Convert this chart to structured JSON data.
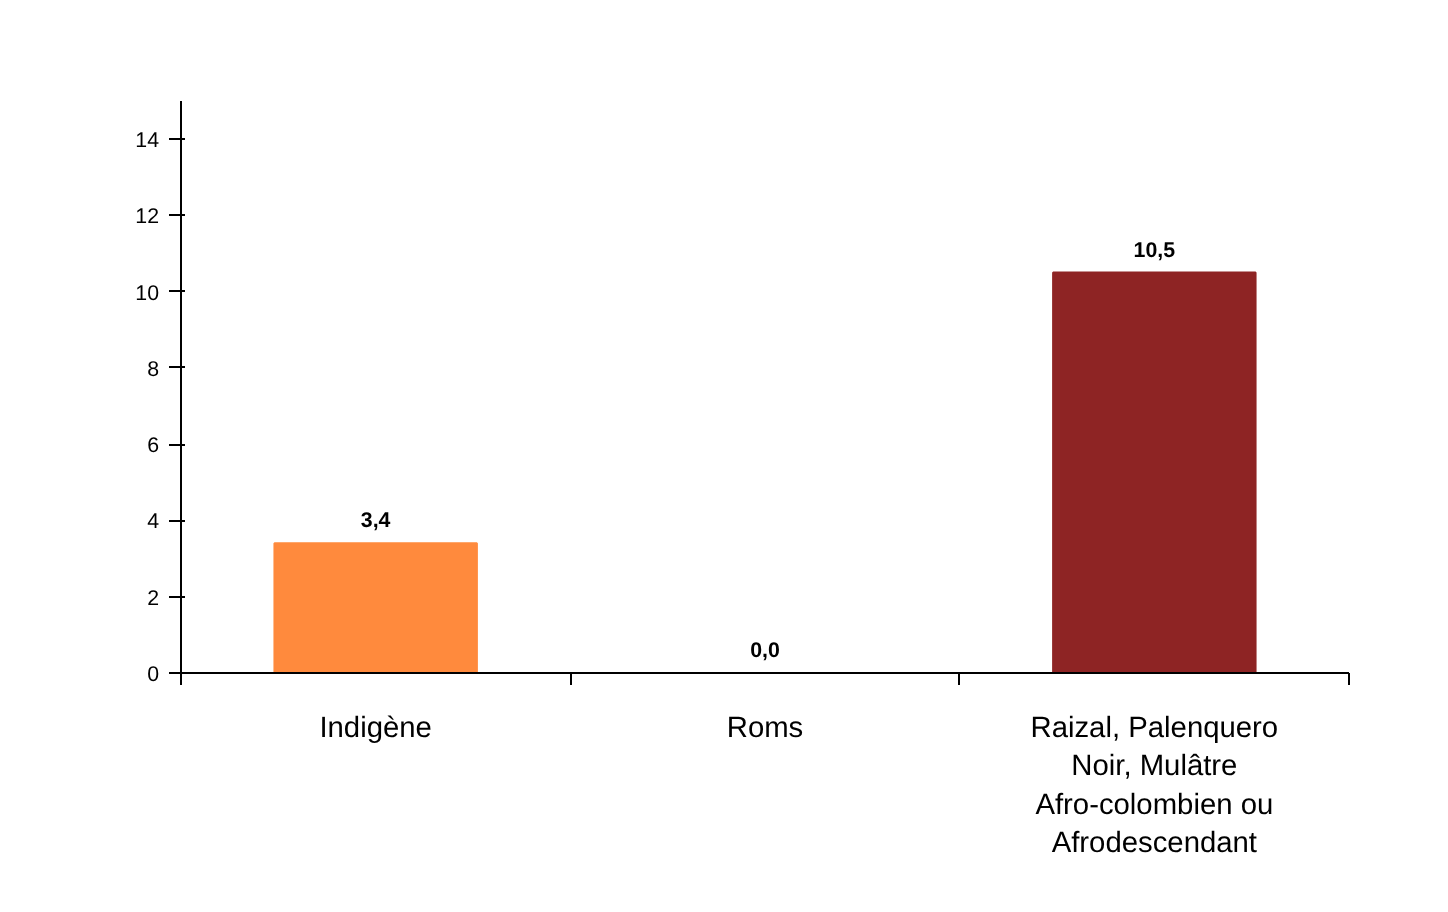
{
  "chart_data": {
    "type": "bar",
    "categories": [
      "Indigène",
      "Roms",
      "Raizal, Palenquero\nNoir, Mulâtre\nAfro-colombien ou\nAfrodescendant"
    ],
    "values": [
      3.4,
      0.0,
      10.5
    ],
    "colors": [
      "#ff8a3d",
      "#ff8a3d",
      "#8e2424"
    ],
    "value_labels": [
      "3,4",
      "0,0",
      "10,5"
    ],
    "ylim": [
      0,
      15
    ],
    "yticks": [
      0,
      2,
      4,
      6,
      8,
      10,
      12,
      14
    ],
    "grid": false
  }
}
